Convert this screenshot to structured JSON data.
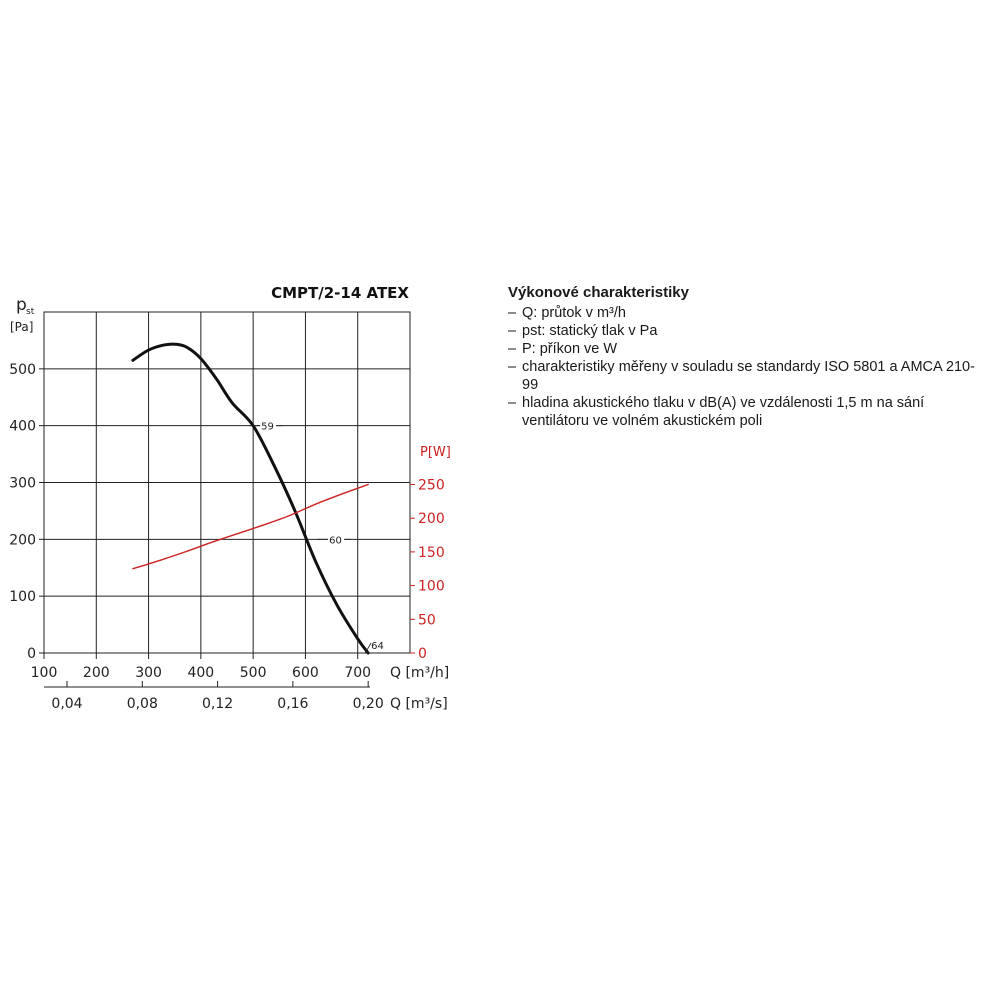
{
  "chart_data": {
    "type": "line",
    "title": "CMPT/2-14 ATEX",
    "ylabel_main": "p",
    "ylabel_sub": "st",
    "ylabel_unit": "[Pa]",
    "y2label": "P[W]",
    "xlabel": "Q [m³/h]",
    "x2label": "Q [m³/s]",
    "xlim": [
      100,
      800
    ],
    "ylim": [
      0,
      600
    ],
    "y2lim": [
      0,
      250
    ],
    "x_ticks": [
      "100",
      "200",
      "300",
      "400",
      "500",
      "600",
      "700"
    ],
    "y_ticks": [
      "0",
      "100",
      "200",
      "300",
      "400",
      "500"
    ],
    "y2_ticks": [
      "0",
      "50",
      "100",
      "150",
      "200",
      "250"
    ],
    "x2_ticks": [
      "0,04",
      "0,08",
      "0,12",
      "0,16",
      "0,20"
    ],
    "x2_values_m3h": [
      144,
      288,
      432,
      576,
      720
    ],
    "grid": true,
    "series": [
      {
        "axis": "y",
        "color": "#111111",
        "x": [
          270,
          300,
          330,
          355,
          375,
          400,
          430,
          460,
          500,
          540,
          580,
          620,
          660,
          700,
          720
        ],
        "y": [
          515,
          533,
          542,
          543,
          537,
          518,
          482,
          440,
          400,
          330,
          250,
          160,
          85,
          25,
          0
        ]
      },
      {
        "axis": "y2",
        "color": "#cc2222",
        "x": [
          270,
          320,
          370,
          420,
          470,
          520,
          570,
          620,
          670,
          720
        ],
        "y": [
          125,
          137,
          150,
          164,
          177,
          190,
          204,
          221,
          236,
          250
        ]
      }
    ],
    "annotations": [
      {
        "text": "59",
        "x": 500,
        "y": 400
      },
      {
        "text": "60",
        "x": 630,
        "y": 200
      },
      {
        "text": "64",
        "x": 718,
        "y": 0
      }
    ]
  },
  "info": {
    "heading": "Výkonové charakteristiky",
    "items": [
      "Q: průtok v m³/h",
      "pst: statický tlak v Pa",
      "P: příkon ve W",
      "charakteristiky měřeny v souladu se standardy ISO 5801 a AMCA 210-99",
      "hladina akustického tlaku v dB(A) ve vzdálenosti 1,5 m na sání ventilátoru ve volném akustickém poli"
    ]
  }
}
